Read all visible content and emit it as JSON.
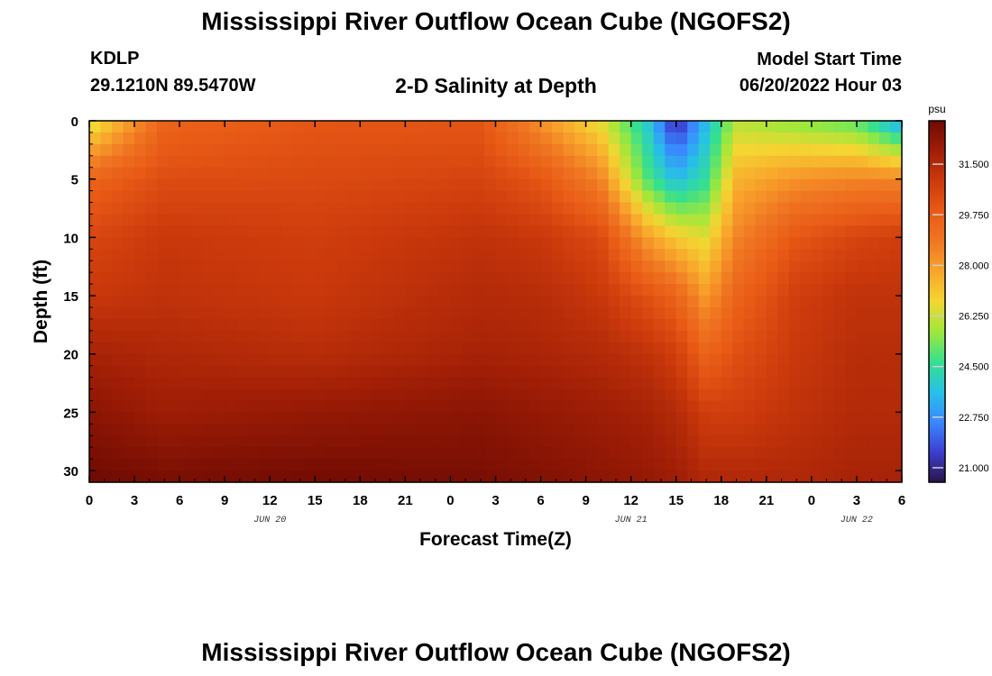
{
  "header": {
    "title": "Mississippi River Outflow Ocean Cube (NGOFS2)",
    "station_id": "KDLP",
    "station_coords": "29.1210N  89.5470W",
    "plot_title": "2-D Salinity at Depth",
    "model_start_label": "Model Start Time",
    "model_start_value": "06/20/2022 Hour 03"
  },
  "footer": {
    "title": "Mississippi River Outflow Ocean Cube (NGOFS2)"
  },
  "chart_data": {
    "type": "heatmap",
    "title": "2-D Salinity at Depth",
    "xlabel": "Forecast Time(Z)",
    "ylabel": "Depth (ft)",
    "x_ticks": [
      "0",
      "3",
      "6",
      "9",
      "12",
      "15",
      "18",
      "21",
      "0",
      "3",
      "6",
      "9",
      "12",
      "15",
      "18",
      "21",
      "0",
      "3",
      "6"
    ],
    "x_range_hours": [
      0,
      54
    ],
    "date_labels": [
      {
        "text": "JUN 20",
        "at_hour": 12
      },
      {
        "text": "JUN 21",
        "at_hour": 36
      },
      {
        "text": "JUN 22",
        "at_hour": 51
      }
    ],
    "y_ticks": [
      "0",
      "5",
      "10",
      "15",
      "20",
      "25",
      "30"
    ],
    "ylim": [
      0,
      31
    ],
    "y_inverted": true,
    "colorbar": {
      "unit": "psu",
      "range": [
        20.5,
        33
      ],
      "ticks": [
        "21.000",
        "22.750",
        "24.500",
        "26.250",
        "28.000",
        "29.750",
        "31.500"
      ],
      "colors": [
        "#2a1448",
        "#3b3fd0",
        "#3a88ff",
        "#27c2e6",
        "#36e08e",
        "#9ee83a",
        "#f4d632",
        "#f8a52c",
        "#f07622",
        "#e85a16",
        "#cc3a0c",
        "#a01e06",
        "#6e0a03"
      ]
    },
    "series": [
      {
        "x_hours": [
          0,
          5,
          15,
          26,
          30,
          34,
          37,
          39,
          41,
          43,
          47,
          51,
          54
        ],
        "depth_ft": 0,
        "salinity_psu": [
          26.2,
          29.5,
          30.0,
          30.0,
          28.2,
          26.5,
          24.0,
          21.0,
          23.5,
          26.0,
          25.5,
          25.0,
          23.0
        ]
      },
      {
        "x_hours": [
          0,
          5,
          15,
          26,
          30,
          34,
          37,
          39,
          41,
          43,
          47,
          51,
          54
        ],
        "depth_ft": 5,
        "salinity_psu": [
          29.5,
          30.3,
          30.4,
          30.6,
          30.0,
          28.5,
          25.0,
          23.5,
          24.5,
          27.5,
          28.2,
          28.5,
          28.5
        ]
      },
      {
        "x_hours": [
          0,
          5,
          15,
          26,
          30,
          34,
          37,
          39,
          41,
          43,
          47,
          51,
          54
        ],
        "depth_ft": 10,
        "salinity_psu": [
          30.5,
          31.0,
          30.8,
          31.2,
          31.0,
          30.4,
          28.0,
          27.0,
          26.5,
          28.5,
          30.0,
          30.6,
          30.8
        ]
      },
      {
        "x_hours": [
          0,
          5,
          15,
          26,
          30,
          34,
          37,
          39,
          41,
          43,
          47,
          51,
          54
        ],
        "depth_ft": 15,
        "salinity_psu": [
          31.0,
          31.2,
          31.0,
          31.5,
          31.4,
          31.0,
          30.2,
          29.5,
          28.0,
          29.5,
          30.8,
          31.2,
          31.2
        ]
      },
      {
        "x_hours": [
          0,
          5,
          15,
          26,
          30,
          34,
          37,
          39,
          41,
          43,
          47,
          51,
          54
        ],
        "depth_ft": 20,
        "salinity_psu": [
          31.8,
          31.6,
          31.4,
          31.8,
          31.7,
          31.5,
          31.2,
          30.8,
          29.5,
          30.2,
          31.0,
          31.4,
          31.4
        ]
      },
      {
        "x_hours": [
          0,
          5,
          15,
          26,
          30,
          34,
          37,
          39,
          41,
          43,
          47,
          51,
          54
        ],
        "depth_ft": 25,
        "salinity_psu": [
          32.4,
          32.0,
          32.2,
          32.4,
          32.2,
          32.0,
          31.8,
          31.5,
          30.8,
          30.8,
          31.2,
          31.5,
          31.5
        ]
      },
      {
        "x_hours": [
          0,
          5,
          15,
          26,
          30,
          34,
          37,
          39,
          41,
          43,
          47,
          51,
          54
        ],
        "depth_ft": 31,
        "salinity_psu": [
          33.0,
          32.8,
          32.9,
          32.8,
          32.6,
          32.4,
          32.2,
          32.0,
          31.6,
          31.6,
          31.6,
          31.8,
          31.8
        ]
      }
    ]
  }
}
